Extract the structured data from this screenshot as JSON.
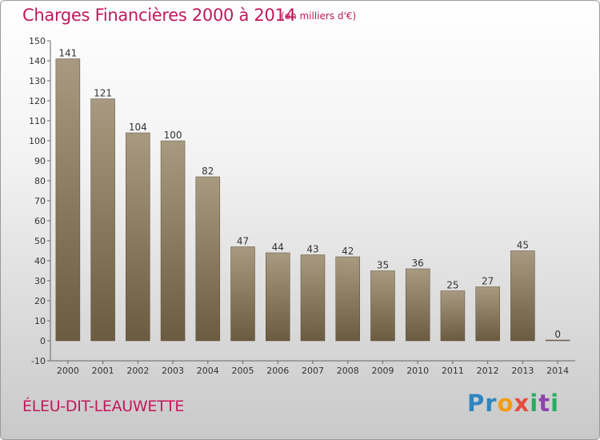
{
  "chart_data": {
    "type": "bar",
    "title": "Charges Financières 2000 à 2014",
    "subtitle": "(en milliers d'€)",
    "categories": [
      "2000",
      "2001",
      "2002",
      "2003",
      "2004",
      "2005",
      "2006",
      "2007",
      "2008",
      "2009",
      "2010",
      "2011",
      "2012",
      "2013",
      "2014"
    ],
    "values": [
      141,
      121,
      104,
      100,
      82,
      47,
      44,
      43,
      42,
      35,
      36,
      25,
      27,
      45,
      0
    ],
    "ylim": [
      -10,
      150
    ],
    "yticks": [
      -10,
      0,
      10,
      20,
      30,
      40,
      50,
      60,
      70,
      80,
      90,
      100,
      110,
      120,
      130,
      140,
      150
    ],
    "grid": false,
    "bar_color_top": "#a89a80",
    "bar_color_bottom": "#6b5b40"
  },
  "footer": {
    "commune": "ÉLEU-DIT-LEAUWETTE",
    "logo_letters": [
      {
        "ch": "P",
        "color": "#2e86c1"
      },
      {
        "ch": "r",
        "color": "#2e86c1"
      },
      {
        "ch": "o",
        "color": "#f39c12"
      },
      {
        "ch": "x",
        "color": "#e74c3c"
      },
      {
        "ch": "i",
        "color": "#27ae60"
      },
      {
        "ch": "t",
        "color": "#8e44ad"
      },
      {
        "ch": "i",
        "color": "#27ae60"
      }
    ]
  }
}
